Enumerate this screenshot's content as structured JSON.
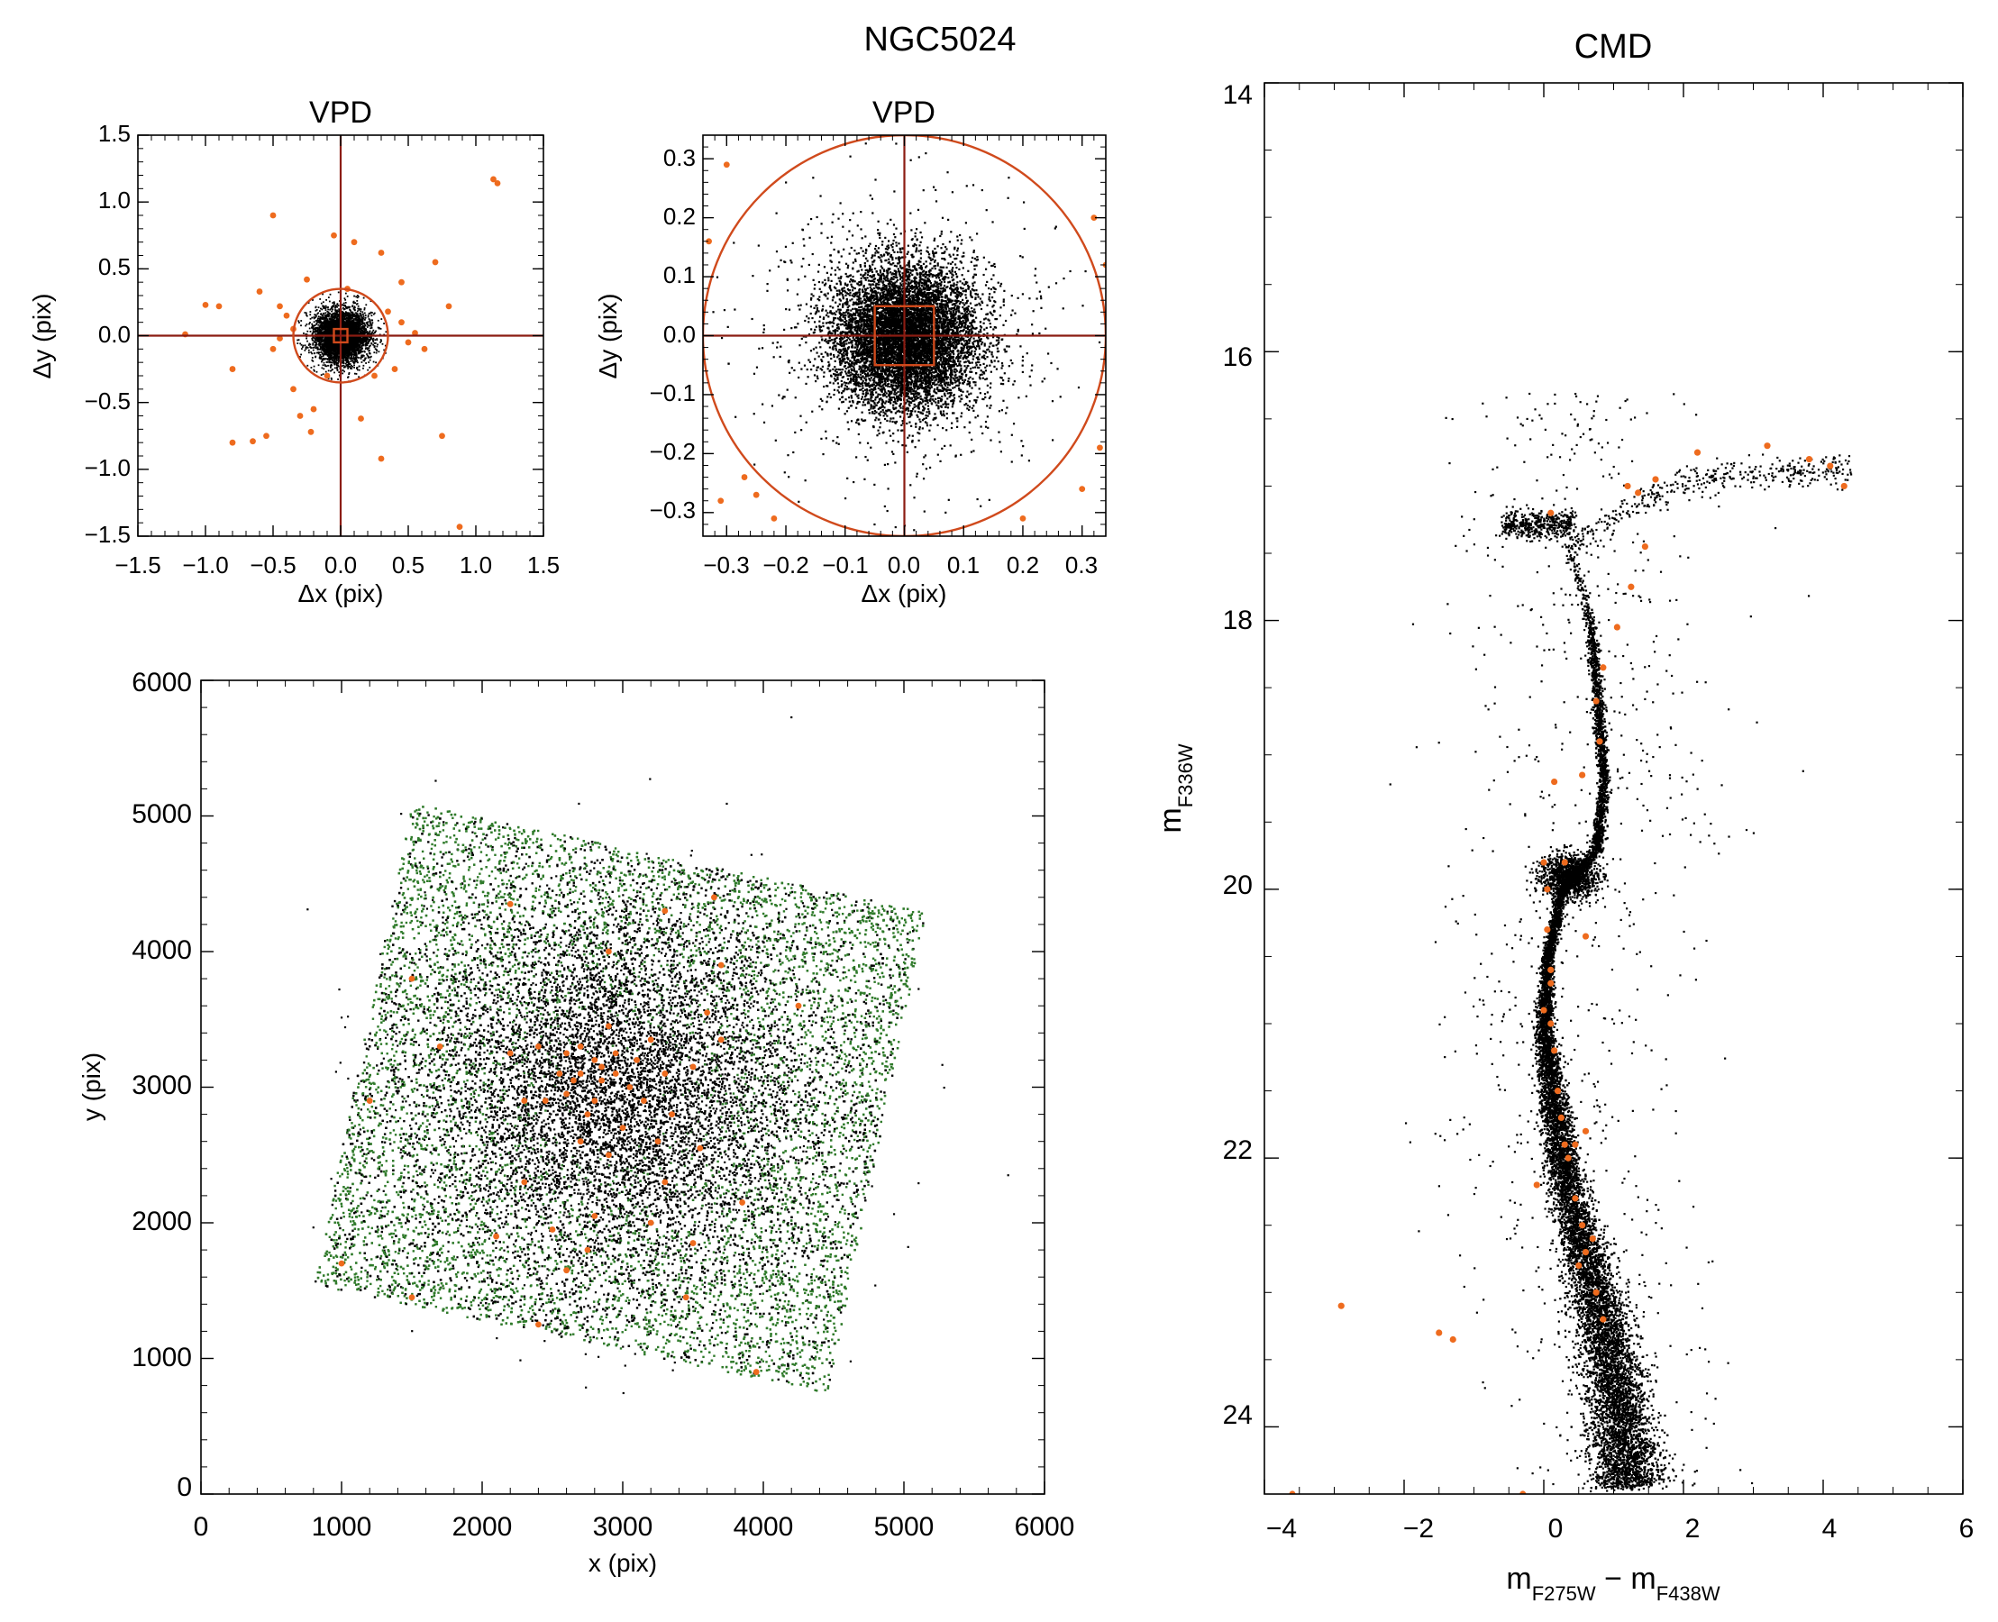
{
  "figure": {
    "title": "NGC5024",
    "colors": {
      "points": "#000000",
      "highlight": "#ee6b1e",
      "selection": "#d04a1c",
      "crosshair": "#8b1c12",
      "field_outer": "#2f7a2a"
    }
  },
  "chart_data": [
    {
      "id": "vpd1",
      "type": "scatter",
      "title": "VPD",
      "xlabel": "Δx (pix)",
      "ylabel": "Δy (pix)",
      "xlim": [
        -1.5,
        1.5
      ],
      "ylim": [
        -1.5,
        1.5
      ],
      "xticks": [
        "−1.5",
        "−1.0",
        "−0.5",
        "0.0",
        "0.5",
        "1.0",
        "1.5"
      ],
      "yticks": [
        "−1.5",
        "−1.0",
        "−0.5",
        "0.0",
        "0.5",
        "1.0",
        "1.5"
      ],
      "selection_circle_radius": 0.35,
      "selection_box_halfwidth": 0.05,
      "core_sigma": 0.09,
      "outliers": [
        [
          1.13,
          1.17
        ],
        [
          1.16,
          1.14
        ],
        [
          -1.15,
          0.01
        ],
        [
          -1.0,
          0.23
        ],
        [
          -0.9,
          0.22
        ],
        [
          -0.8,
          -0.25
        ],
        [
          -0.8,
          -0.8
        ],
        [
          -0.65,
          -0.79
        ],
        [
          -0.6,
          0.33
        ],
        [
          -0.55,
          -0.75
        ],
        [
          -0.5,
          0.9
        ],
        [
          -0.45,
          0.22
        ],
        [
          -0.45,
          -0.02
        ],
        [
          -0.4,
          0.15
        ],
        [
          -0.35,
          -0.4
        ],
        [
          -0.3,
          -0.6
        ],
        [
          -0.25,
          0.42
        ],
        [
          -0.22,
          -0.72
        ],
        [
          -0.2,
          -0.55
        ],
        [
          -0.1,
          -0.3
        ],
        [
          -0.05,
          0.75
        ],
        [
          0.05,
          0.35
        ],
        [
          0.1,
          0.7
        ],
        [
          0.15,
          -0.62
        ],
        [
          0.25,
          -0.3
        ],
        [
          0.3,
          -0.92
        ],
        [
          0.3,
          0.62
        ],
        [
          0.35,
          0.18
        ],
        [
          0.4,
          -0.25
        ],
        [
          0.45,
          0.1
        ],
        [
          0.55,
          0.02
        ],
        [
          0.62,
          -0.1
        ],
        [
          0.7,
          0.55
        ],
        [
          0.75,
          -0.75
        ],
        [
          0.8,
          0.22
        ],
        [
          0.88,
          -1.43
        ],
        [
          0.45,
          0.4
        ],
        [
          -0.5,
          -0.1
        ],
        [
          0.5,
          -0.05
        ],
        [
          -0.35,
          0.05
        ]
      ]
    },
    {
      "id": "vpd2",
      "type": "scatter",
      "title": "VPD",
      "xlabel": "Δx (pix)",
      "ylabel": "Δy (pix)",
      "xlim": [
        -0.34,
        0.34
      ],
      "ylim": [
        -0.34,
        0.34
      ],
      "xticks": [
        "−0.3",
        "−0.2",
        "−0.1",
        "0.0",
        "0.1",
        "0.2",
        "0.3"
      ],
      "yticks": [
        "−0.3",
        "−0.2",
        "−0.1",
        "0.0",
        "0.1",
        "0.2",
        "0.3"
      ],
      "selection_circle_radius": 0.34,
      "selection_box_halfwidth": 0.05,
      "core_sigma": 0.06,
      "outliers": [
        [
          -0.3,
          0.29
        ],
        [
          -0.33,
          0.16
        ],
        [
          -0.31,
          -0.28
        ],
        [
          -0.27,
          -0.24
        ],
        [
          -0.25,
          -0.27
        ],
        [
          -0.22,
          -0.31
        ],
        [
          0.2,
          -0.31
        ],
        [
          0.3,
          -0.26
        ],
        [
          0.33,
          -0.19
        ],
        [
          0.32,
          0.2
        ],
        [
          0.34,
          0.12
        ]
      ]
    },
    {
      "id": "field",
      "type": "scatter",
      "title": "",
      "xlabel": "x (pix)",
      "ylabel": "y (pix)",
      "xlim": [
        0,
        6000
      ],
      "ylim": [
        0,
        6000
      ],
      "xticks": [
        "0",
        "1000",
        "2000",
        "3000",
        "4000",
        "5000",
        "6000"
      ],
      "yticks": [
        "0",
        "1000",
        "2000",
        "3000",
        "4000",
        "5000",
        "6000"
      ],
      "footprint": [
        [
          1500,
          5100
        ],
        [
          5150,
          4300
        ],
        [
          4450,
          750
        ],
        [
          800,
          1550
        ]
      ],
      "cluster_center": [
        2950,
        2950
      ],
      "highlighted": [
        [
          2850,
          3150
        ],
        [
          2700,
          3300
        ],
        [
          2950,
          3250
        ],
        [
          3050,
          3000
        ],
        [
          2800,
          2900
        ],
        [
          3100,
          3200
        ],
        [
          2650,
          3050
        ],
        [
          2900,
          3450
        ],
        [
          3200,
          3350
        ],
        [
          2600,
          3250
        ],
        [
          2750,
          2800
        ],
        [
          3000,
          2700
        ],
        [
          2550,
          3100
        ],
        [
          3300,
          3100
        ],
        [
          2700,
          3100
        ],
        [
          3150,
          2900
        ],
        [
          2850,
          3050
        ],
        [
          2950,
          3100
        ],
        [
          2800,
          3200
        ],
        [
          2600,
          2950
        ],
        [
          3350,
          2800
        ],
        [
          3250,
          2600
        ],
        [
          2700,
          2600
        ],
        [
          2900,
          2500
        ],
        [
          2450,
          2900
        ],
        [
          2400,
          3300
        ],
        [
          2300,
          2900
        ],
        [
          2200,
          3250
        ],
        [
          3500,
          3150
        ],
        [
          3600,
          3550
        ],
        [
          3700,
          3350
        ],
        [
          3700,
          3900
        ],
        [
          3650,
          4400
        ],
        [
          3300,
          4300
        ],
        [
          2900,
          4000
        ],
        [
          2200,
          4350
        ],
        [
          1500,
          3800
        ],
        [
          1700,
          3300
        ],
        [
          1200,
          2900
        ],
        [
          1000,
          1700
        ],
        [
          1500,
          1450
        ],
        [
          2100,
          1900
        ],
        [
          2300,
          2300
        ],
        [
          2500,
          1950
        ],
        [
          2800,
          2050
        ],
        [
          3200,
          2000
        ],
        [
          3500,
          1850
        ],
        [
          3850,
          2150
        ],
        [
          4250,
          3600
        ],
        [
          3450,
          1450
        ],
        [
          2600,
          1650
        ],
        [
          2750,
          1800
        ],
        [
          3950,
          900
        ],
        [
          2400,
          1250
        ],
        [
          3300,
          2300
        ],
        [
          3550,
          2550
        ]
      ]
    },
    {
      "id": "cmd",
      "type": "scatter",
      "title": "CMD",
      "xlabel": "m_F275W − m_F438W",
      "ylabel": "m_F336W",
      "xlim": [
        -4,
        6
      ],
      "ylim": [
        24.5,
        14
      ],
      "xticks": [
        "−4",
        "−2",
        "0",
        "2",
        "4",
        "6"
      ],
      "yticks": [
        "14",
        "16",
        "18",
        "20",
        "22",
        "24"
      ],
      "sequence_ridge": [
        [
          0.33,
          17.4
        ],
        [
          0.5,
          17.7
        ],
        [
          0.65,
          18.0
        ],
        [
          0.75,
          18.5
        ],
        [
          0.85,
          19.2
        ],
        [
          0.75,
          19.7
        ],
        [
          0.25,
          20.0
        ],
        [
          0.05,
          20.5
        ],
        [
          0.0,
          21.0
        ],
        [
          0.1,
          21.5
        ],
        [
          0.25,
          22.0
        ],
        [
          0.45,
          22.5
        ],
        [
          0.75,
          23.0
        ],
        [
          0.95,
          23.5
        ],
        [
          1.1,
          24.0
        ],
        [
          1.2,
          24.4
        ]
      ],
      "highlighted": [
        [
          -3.6,
          24.5
        ],
        [
          -2.9,
          23.1
        ],
        [
          -1.5,
          23.3
        ],
        [
          -1.3,
          23.35
        ],
        [
          -0.3,
          24.5
        ],
        [
          0.6,
          20.35
        ],
        [
          0.0,
          19.8
        ],
        [
          0.05,
          20.0
        ],
        [
          0.05,
          20.3
        ],
        [
          0.1,
          20.6
        ],
        [
          0.1,
          20.7
        ],
        [
          0.0,
          20.9
        ],
        [
          0.1,
          21.0
        ],
        [
          0.15,
          21.2
        ],
        [
          0.2,
          21.5
        ],
        [
          0.25,
          21.7
        ],
        [
          0.3,
          21.9
        ],
        [
          0.35,
          22.0
        ],
        [
          0.45,
          22.3
        ],
        [
          0.55,
          22.5
        ],
        [
          0.6,
          22.7
        ],
        [
          0.75,
          23.0
        ],
        [
          0.85,
          23.2
        ],
        [
          0.45,
          21.9
        ],
        [
          0.6,
          21.8
        ],
        [
          0.5,
          22.8
        ],
        [
          0.7,
          22.6
        ],
        [
          -0.1,
          22.2
        ],
        [
          0.15,
          19.2
        ],
        [
          0.55,
          19.15
        ],
        [
          0.75,
          18.6
        ],
        [
          0.8,
          18.9
        ],
        [
          0.85,
          18.35
        ],
        [
          1.05,
          18.05
        ],
        [
          1.25,
          17.75
        ],
        [
          1.45,
          17.45
        ],
        [
          0.1,
          17.2
        ],
        [
          1.2,
          17.0
        ],
        [
          1.35,
          17.05
        ],
        [
          1.6,
          16.95
        ],
        [
          2.2,
          16.75
        ],
        [
          3.2,
          16.7
        ],
        [
          3.8,
          16.8
        ],
        [
          4.1,
          16.85
        ],
        [
          4.3,
          17.0
        ],
        [
          0.3,
          19.8
        ]
      ]
    }
  ]
}
